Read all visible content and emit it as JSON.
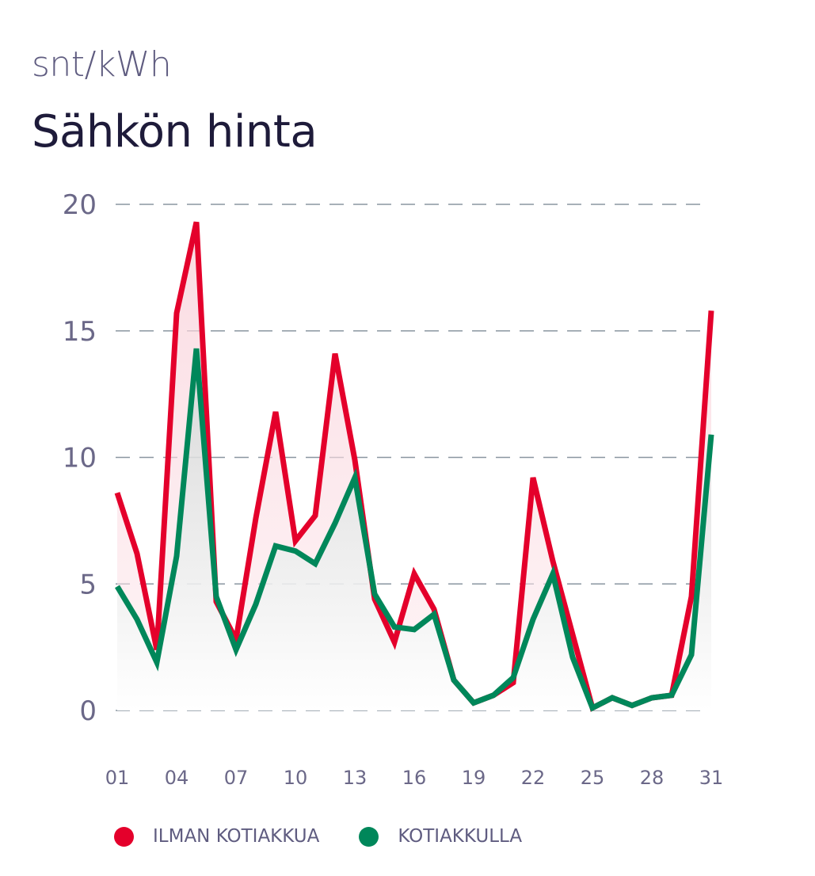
{
  "header": {
    "unit": "snt/kWh",
    "title": "Sähkön hinta"
  },
  "colors": {
    "without_battery": "#e4002b",
    "with_battery": "#00875a",
    "grid": "#8a96a0",
    "fill_red": "#f9d3dc",
    "fill_gray": "#dcdcdc"
  },
  "chart_data": {
    "type": "line",
    "title": "Sähkön hinta",
    "ylabel": "snt/kWh",
    "xlabel": "",
    "ylim": [
      0,
      20
    ],
    "yticks": [
      "0",
      "5",
      "10",
      "15",
      "20"
    ],
    "xtick_labels": [
      "01",
      "04",
      "07",
      "10",
      "13",
      "16",
      "19",
      "22",
      "25",
      "28",
      "31"
    ],
    "xtick_days": [
      1,
      4,
      7,
      10,
      13,
      16,
      19,
      22,
      25,
      28,
      31
    ],
    "grid": "horizontal dashed",
    "legend_position": "bottom",
    "x": [
      1,
      2,
      3,
      4,
      5,
      6,
      7,
      8,
      9,
      10,
      11,
      12,
      13,
      14,
      15,
      16,
      17,
      18,
      19,
      20,
      21,
      22,
      23,
      24,
      25,
      26,
      27,
      28,
      29,
      30,
      31
    ],
    "series": [
      {
        "name": "ILMAN KOTIAKKUA",
        "values": [
          8.6,
          6.2,
          2.4,
          15.7,
          19.3,
          4.3,
          2.8,
          7.6,
          11.8,
          6.7,
          7.7,
          14.1,
          9.9,
          4.4,
          2.7,
          5.4,
          4.0,
          1.2,
          0.3,
          0.6,
          1.1,
          9.2,
          5.9,
          3.0,
          0.1,
          0.5,
          0.2,
          0.5,
          0.6,
          4.5,
          15.8
        ]
      },
      {
        "name": "KOTIAKKULLA",
        "values": [
          4.9,
          3.6,
          1.9,
          6.1,
          14.3,
          4.5,
          2.4,
          4.2,
          6.5,
          6.3,
          5.8,
          7.4,
          9.2,
          4.6,
          3.3,
          3.2,
          3.8,
          1.2,
          0.3,
          0.6,
          1.3,
          3.6,
          5.4,
          2.1,
          0.1,
          0.5,
          0.2,
          0.5,
          0.6,
          2.2,
          10.9
        ]
      }
    ]
  }
}
